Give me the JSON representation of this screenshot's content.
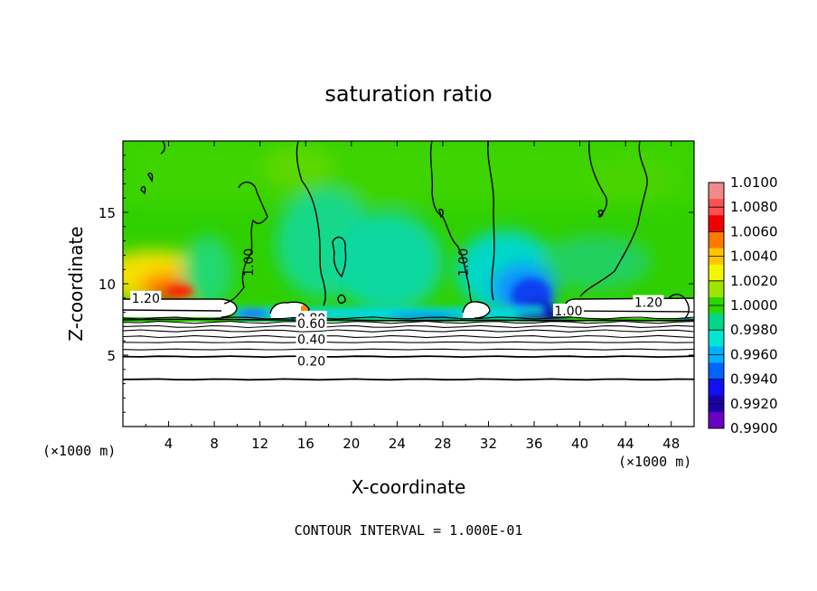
{
  "chart_data": {
    "type": "heatmap",
    "title": "saturation ratio",
    "xlabel": "X-coordinate",
    "ylabel": "Z-coordinate",
    "x_units_left": "(×1000 m)",
    "x_units_right": "(×1000 m)",
    "xlim": [
      0,
      50
    ],
    "ylim": [
      0,
      20
    ],
    "x_ticks": [
      4,
      8,
      12,
      16,
      20,
      24,
      28,
      32,
      36,
      40,
      44,
      48
    ],
    "y_ticks": [
      5,
      10,
      15
    ],
    "footer": "CONTOUR INTERVAL = 1.000E-01",
    "colorbar": {
      "min": 0.99,
      "max": 1.01,
      "labels": [
        "1.0100",
        "1.0080",
        "1.0060",
        "1.0040",
        "1.0020",
        "1.0000",
        "0.9980",
        "0.9960",
        "0.9940",
        "0.9920",
        "0.9900"
      ],
      "colors": [
        "#f08a8a",
        "#ff5050",
        "#ee0000",
        "#ff7800",
        "#ffc400",
        "#f5f500",
        "#9de600",
        "#2ed600",
        "#00d68a",
        "#00e8d0",
        "#00b0ff",
        "#0064ff",
        "#1010f0",
        "#1a00a8",
        "#6a00c0"
      ]
    },
    "contour_labels": [
      {
        "text": "1.00",
        "x": 11.0,
        "y": 11.5
      },
      {
        "text": "1.00",
        "x": 29.8,
        "y": 11.5
      },
      {
        "text": "1.20",
        "x": 2.0,
        "y": 9.0
      },
      {
        "text": "1.20",
        "x": 46.0,
        "y": 8.7
      },
      {
        "text": "1.00",
        "x": 39.0,
        "y": 8.1
      },
      {
        "text": "0.80",
        "x": 16.5,
        "y": 7.6
      },
      {
        "text": "0.60",
        "x": 16.5,
        "y": 7.2
      },
      {
        "text": "0.40",
        "x": 16.5,
        "y": 6.1
      },
      {
        "text": "0.20",
        "x": 16.5,
        "y": 4.6
      }
    ],
    "lower_contour_levels_z": [
      7.6,
      7.3,
      7.0,
      6.7,
      6.3,
      5.9,
      5.4,
      4.9,
      3.3
    ]
  }
}
